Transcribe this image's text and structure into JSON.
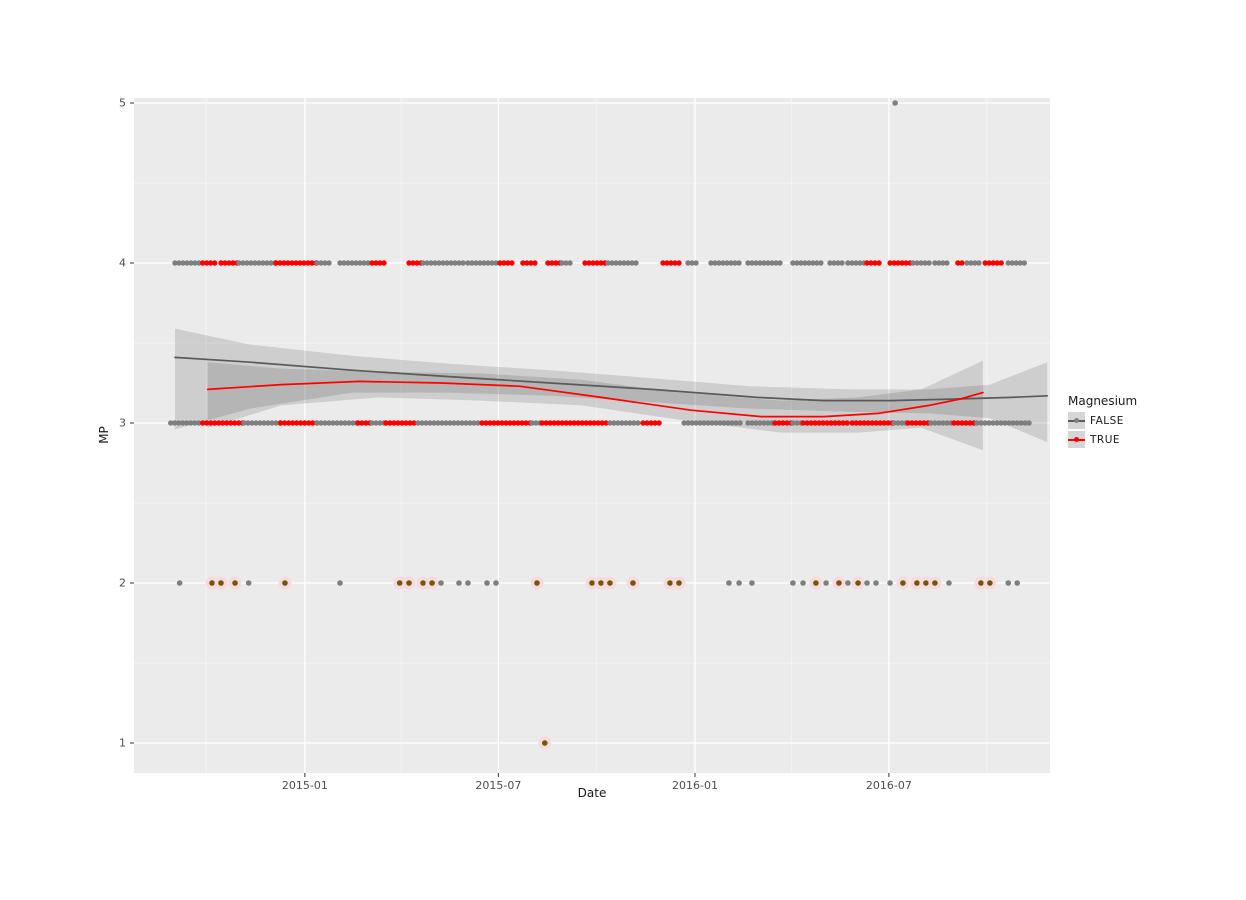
{
  "chart_data": {
    "type": "scatter",
    "title": "",
    "xlabel": "Date",
    "ylabel": "MP",
    "grid": true,
    "legend_position": "right",
    "legend": {
      "title": "Magnesium",
      "entries": [
        {
          "label": "FALSE",
          "point_color": "#7f7f7f",
          "line_color": "#5a5a5a"
        },
        {
          "label": "TRUE",
          "point_color": "#ff0000",
          "line_color": "#ff0000"
        }
      ]
    },
    "x_domain_years": [
      2014.562,
      2016.91
    ],
    "y_domain": [
      0.8125,
      5.03125
    ],
    "x_ticks": [
      {
        "year": 2015.0,
        "label": "2015-01"
      },
      {
        "year": 2015.496,
        "label": "2015-07"
      },
      {
        "year": 2016.0,
        "label": "2016-01"
      },
      {
        "year": 2016.497,
        "label": "2016-07"
      }
    ],
    "x_minor": [
      2014.747,
      2015.247,
      2015.747,
      2016.247,
      2016.748
    ],
    "y_ticks": [
      {
        "value": 1,
        "label": "1"
      },
      {
        "value": 2,
        "label": "2"
      },
      {
        "value": 3,
        "label": "3"
      },
      {
        "value": 4,
        "label": "4"
      },
      {
        "value": 5,
        "label": "5"
      }
    ],
    "y_minor": [
      1.5,
      2.5,
      3.5,
      4.5
    ],
    "colors": {
      "panel_bg": "#ebebeb",
      "grid_major": "#ffffff",
      "grid_minor": "#f5f5f5",
      "band_fill": "#000000",
      "band_opacity": 0.12,
      "point_false": "#7f7f7f",
      "point_true": "#ff0000",
      "point_overlap": "#6e5a08",
      "overlap_halo": "#f8d9de",
      "line_false": "#5a5a5a",
      "line_true": "#ff0000",
      "tick_text": "#4d4d4d",
      "tick_mark": "#333333"
    },
    "point_runs": [
      {
        "y": 4,
        "series": "FALSE",
        "x0": 2014.667,
        "x1": 2014.738
      },
      {
        "y": 4,
        "series": "TRUE",
        "x0": 2014.738,
        "x1": 2014.772
      },
      {
        "y": 4,
        "series": "TRUE",
        "x0": 2014.785,
        "x1": 2014.831
      },
      {
        "y": 4,
        "series": "FALSE",
        "x0": 2014.831,
        "x1": 2014.926
      },
      {
        "y": 4,
        "series": "TRUE",
        "x0": 2014.926,
        "x1": 2015.031
      },
      {
        "y": 4,
        "series": "FALSE",
        "x0": 2015.031,
        "x1": 2015.067
      },
      {
        "y": 4,
        "series": "FALSE",
        "x0": 2015.09,
        "x1": 2015.172
      },
      {
        "y": 4,
        "series": "TRUE",
        "x0": 2015.172,
        "x1": 2015.208
      },
      {
        "y": 4,
        "series": "TRUE",
        "x0": 2015.267,
        "x1": 2015.303
      },
      {
        "y": 4,
        "series": "FALSE",
        "x0": 2015.303,
        "x1": 2015.408
      },
      {
        "y": 4,
        "series": "FALSE",
        "x0": 2015.418,
        "x1": 2015.49
      },
      {
        "y": 4,
        "series": "TRUE",
        "x0": 2015.5,
        "x1": 2015.536
      },
      {
        "y": 4,
        "series": "TRUE",
        "x0": 2015.559,
        "x1": 2015.595
      },
      {
        "y": 4,
        "series": "TRUE",
        "x0": 2015.623,
        "x1": 2015.659
      },
      {
        "y": 4,
        "series": "FALSE",
        "x0": 2015.659,
        "x1": 2015.682
      },
      {
        "y": 4,
        "series": "TRUE",
        "x0": 2015.718,
        "x1": 2015.777
      },
      {
        "y": 4,
        "series": "FALSE",
        "x0": 2015.777,
        "x1": 2015.859
      },
      {
        "y": 4,
        "series": "TRUE",
        "x0": 2015.918,
        "x1": 2015.964
      },
      {
        "y": 4,
        "series": "FALSE",
        "x0": 2015.982,
        "x1": 2016.005
      },
      {
        "y": 4,
        "series": "FALSE",
        "x0": 2016.041,
        "x1": 2016.113
      },
      {
        "y": 4,
        "series": "FALSE",
        "x0": 2016.136,
        "x1": 2016.228
      },
      {
        "y": 4,
        "series": "FALSE",
        "x0": 2016.251,
        "x1": 2016.323
      },
      {
        "y": 4,
        "series": "FALSE",
        "x0": 2016.346,
        "x1": 2016.382
      },
      {
        "y": 4,
        "series": "FALSE",
        "x0": 2016.392,
        "x1": 2016.441
      },
      {
        "y": 4,
        "series": "TRUE",
        "x0": 2016.441,
        "x1": 2016.474
      },
      {
        "y": 4,
        "series": "TRUE",
        "x0": 2016.5,
        "x1": 2016.559
      },
      {
        "y": 4,
        "series": "FALSE",
        "x0": 2016.559,
        "x1": 2016.605
      },
      {
        "y": 4,
        "series": "FALSE",
        "x0": 2016.615,
        "x1": 2016.651
      },
      {
        "y": 4,
        "series": "TRUE",
        "x0": 2016.674,
        "x1": 2016.687
      },
      {
        "y": 4,
        "series": "FALSE",
        "x0": 2016.697,
        "x1": 2016.733
      },
      {
        "y": 4,
        "series": "TRUE",
        "x0": 2016.744,
        "x1": 2016.79
      },
      {
        "y": 4,
        "series": "FALSE",
        "x0": 2016.803,
        "x1": 2016.849
      },
      {
        "y": 3,
        "series": "FALSE",
        "x0": 2014.656,
        "x1": 2014.738
      },
      {
        "y": 3,
        "series": "TRUE",
        "x0": 2014.738,
        "x1": 2014.844
      },
      {
        "y": 3,
        "series": "FALSE",
        "x0": 2014.844,
        "x1": 2014.938
      },
      {
        "y": 3,
        "series": "TRUE",
        "x0": 2014.938,
        "x1": 2015.031
      },
      {
        "y": 3,
        "series": "FALSE",
        "x0": 2015.031,
        "x1": 2015.136
      },
      {
        "y": 3,
        "series": "TRUE",
        "x0": 2015.136,
        "x1": 2015.172
      },
      {
        "y": 3,
        "series": "FALSE",
        "x0": 2015.172,
        "x1": 2015.208
      },
      {
        "y": 3,
        "series": "TRUE",
        "x0": 2015.208,
        "x1": 2015.29
      },
      {
        "y": 3,
        "series": "FALSE",
        "x0": 2015.29,
        "x1": 2015.454
      },
      {
        "y": 3,
        "series": "TRUE",
        "x0": 2015.454,
        "x1": 2015.582
      },
      {
        "y": 3,
        "series": "FALSE",
        "x0": 2015.582,
        "x1": 2015.608
      },
      {
        "y": 3,
        "series": "TRUE",
        "x0": 2015.608,
        "x1": 2015.782
      },
      {
        "y": 3,
        "series": "FALSE",
        "x0": 2015.782,
        "x1": 2015.854
      },
      {
        "y": 3,
        "series": "TRUE",
        "x0": 2015.867,
        "x1": 2015.918
      },
      {
        "y": 3,
        "series": "FALSE",
        "x0": 2015.972,
        "x1": 2016.123
      },
      {
        "y": 3,
        "series": "FALSE",
        "x0": 2016.136,
        "x1": 2016.205
      },
      {
        "y": 3,
        "series": "TRUE",
        "x0": 2016.205,
        "x1": 2016.251
      },
      {
        "y": 3,
        "series": "FALSE",
        "x0": 2016.251,
        "x1": 2016.277
      },
      {
        "y": 3,
        "series": "TRUE",
        "x0": 2016.277,
        "x1": 2016.392
      },
      {
        "y": 3,
        "series": "TRUE",
        "x0": 2016.403,
        "x1": 2016.51
      },
      {
        "y": 3,
        "series": "FALSE",
        "x0": 2016.51,
        "x1": 2016.546
      },
      {
        "y": 3,
        "series": "TRUE",
        "x0": 2016.546,
        "x1": 2016.605
      },
      {
        "y": 3,
        "series": "FALSE",
        "x0": 2016.605,
        "x1": 2016.664
      },
      {
        "y": 3,
        "series": "TRUE",
        "x0": 2016.664,
        "x1": 2016.723
      },
      {
        "y": 3,
        "series": "FALSE",
        "x0": 2016.723,
        "x1": 2016.864
      }
    ],
    "points": [
      {
        "x": 2016.513,
        "y": 5,
        "series": "FALSE"
      },
      {
        "x": 2015.615,
        "y": 1,
        "series": "BOTH"
      },
      {
        "x": 2014.679,
        "y": 2,
        "series": "FALSE"
      },
      {
        "x": 2014.762,
        "y": 2,
        "series": "BOTH"
      },
      {
        "x": 2014.785,
        "y": 2,
        "series": "BOTH"
      },
      {
        "x": 2014.821,
        "y": 2,
        "series": "BOTH"
      },
      {
        "x": 2014.856,
        "y": 2,
        "series": "FALSE"
      },
      {
        "x": 2014.949,
        "y": 2,
        "series": "BOTH"
      },
      {
        "x": 2015.09,
        "y": 2,
        "series": "FALSE"
      },
      {
        "x": 2015.243,
        "y": 2,
        "series": "BOTH"
      },
      {
        "x": 2015.267,
        "y": 2,
        "series": "BOTH"
      },
      {
        "x": 2015.303,
        "y": 2,
        "series": "BOTH"
      },
      {
        "x": 2015.326,
        "y": 2,
        "series": "BOTH"
      },
      {
        "x": 2015.349,
        "y": 2,
        "series": "FALSE"
      },
      {
        "x": 2015.395,
        "y": 2,
        "series": "FALSE"
      },
      {
        "x": 2015.418,
        "y": 2,
        "series": "FALSE"
      },
      {
        "x": 2015.467,
        "y": 2,
        "series": "FALSE"
      },
      {
        "x": 2015.49,
        "y": 2,
        "series": "FALSE"
      },
      {
        "x": 2015.595,
        "y": 2,
        "series": "BOTH"
      },
      {
        "x": 2015.736,
        "y": 2,
        "series": "BOTH"
      },
      {
        "x": 2015.759,
        "y": 2,
        "series": "BOTH"
      },
      {
        "x": 2015.782,
        "y": 2,
        "series": "BOTH"
      },
      {
        "x": 2015.841,
        "y": 2,
        "series": "BOTH"
      },
      {
        "x": 2015.936,
        "y": 2,
        "series": "BOTH"
      },
      {
        "x": 2015.959,
        "y": 2,
        "series": "BOTH"
      },
      {
        "x": 2016.087,
        "y": 2,
        "series": "FALSE"
      },
      {
        "x": 2016.113,
        "y": 2,
        "series": "FALSE"
      },
      {
        "x": 2016.146,
        "y": 2,
        "series": "FALSE"
      },
      {
        "x": 2016.251,
        "y": 2,
        "series": "FALSE"
      },
      {
        "x": 2016.277,
        "y": 2,
        "series": "FALSE"
      },
      {
        "x": 2016.31,
        "y": 2,
        "series": "BOTH"
      },
      {
        "x": 2016.336,
        "y": 2,
        "series": "FALSE"
      },
      {
        "x": 2016.369,
        "y": 2,
        "series": "BOTH"
      },
      {
        "x": 2016.392,
        "y": 2,
        "series": "FALSE"
      },
      {
        "x": 2016.418,
        "y": 2,
        "series": "BOTH"
      },
      {
        "x": 2016.441,
        "y": 2,
        "series": "FALSE"
      },
      {
        "x": 2016.464,
        "y": 2,
        "series": "FALSE"
      },
      {
        "x": 2016.5,
        "y": 2,
        "series": "FALSE"
      },
      {
        "x": 2016.533,
        "y": 2,
        "series": "BOTH"
      },
      {
        "x": 2016.569,
        "y": 2,
        "series": "BOTH"
      },
      {
        "x": 2016.592,
        "y": 2,
        "series": "BOTH"
      },
      {
        "x": 2016.615,
        "y": 2,
        "series": "BOTH"
      },
      {
        "x": 2016.651,
        "y": 2,
        "series": "FALSE"
      },
      {
        "x": 2016.733,
        "y": 2,
        "series": "BOTH"
      },
      {
        "x": 2016.756,
        "y": 2,
        "series": "BOTH"
      },
      {
        "x": 2016.803,
        "y": 2,
        "series": "FALSE"
      },
      {
        "x": 2016.826,
        "y": 2,
        "series": "FALSE"
      }
    ],
    "smooth": {
      "FALSE": {
        "line": [
          [
            2014.667,
            3.41
          ],
          [
            2014.86,
            3.38
          ],
          [
            2015.12,
            3.33
          ],
          [
            2015.37,
            3.29
          ],
          [
            2015.63,
            3.25
          ],
          [
            2015.89,
            3.21
          ],
          [
            2016.16,
            3.16
          ],
          [
            2016.33,
            3.14
          ],
          [
            2016.5,
            3.14
          ],
          [
            2016.67,
            3.15
          ],
          [
            2016.81,
            3.16
          ],
          [
            2016.903,
            3.17
          ]
        ],
        "band": [
          [
            2014.667,
            3.59,
            2.96
          ],
          [
            2014.86,
            3.49,
            3.09
          ],
          [
            2015.12,
            3.42,
            3.19
          ],
          [
            2015.37,
            3.37,
            3.19
          ],
          [
            2015.63,
            3.33,
            3.17
          ],
          [
            2015.89,
            3.28,
            3.13
          ],
          [
            2016.14,
            3.23,
            3.09
          ],
          [
            2016.4,
            3.21,
            3.07
          ],
          [
            2016.6,
            3.21,
            3.06
          ],
          [
            2016.756,
            3.24,
            3.03
          ],
          [
            2016.903,
            3.38,
            2.88
          ]
        ]
      },
      "TRUE": {
        "line": [
          [
            2014.751,
            3.21
          ],
          [
            2014.94,
            3.24
          ],
          [
            2015.14,
            3.26
          ],
          [
            2015.35,
            3.25
          ],
          [
            2015.55,
            3.23
          ],
          [
            2015.76,
            3.16
          ],
          [
            2015.99,
            3.08
          ],
          [
            2016.17,
            3.04
          ],
          [
            2016.33,
            3.04
          ],
          [
            2016.47,
            3.06
          ],
          [
            2016.6,
            3.11
          ],
          [
            2016.68,
            3.15
          ],
          [
            2016.738,
            3.19
          ]
        ],
        "band": [
          [
            2014.751,
            3.38,
            2.97
          ],
          [
            2014.94,
            3.34,
            3.11
          ],
          [
            2015.19,
            3.32,
            3.16
          ],
          [
            2015.45,
            3.31,
            3.14
          ],
          [
            2015.71,
            3.27,
            3.11
          ],
          [
            2015.96,
            3.19,
            3.02
          ],
          [
            2016.22,
            3.14,
            2.94
          ],
          [
            2016.42,
            3.16,
            2.94
          ],
          [
            2016.58,
            3.21,
            2.97
          ],
          [
            2016.738,
            3.39,
            2.83
          ]
        ]
      }
    }
  }
}
